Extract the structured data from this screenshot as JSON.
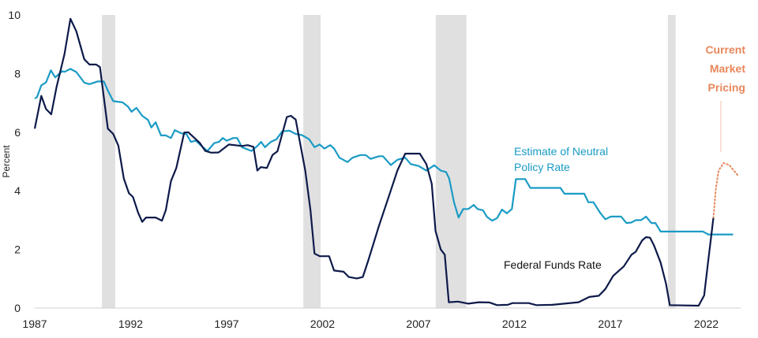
{
  "chart_data": {
    "type": "line",
    "ylabel": "Percent",
    "xlabel": "",
    "xlim": [
      1987,
      2023.8
    ],
    "ylim": [
      0,
      10
    ],
    "x_ticks": [
      "1987",
      "1992",
      "1997",
      "2002",
      "2007",
      "2012",
      "2017",
      "2022"
    ],
    "y_ticks": [
      "0",
      "2",
      "4",
      "6",
      "8",
      "10"
    ],
    "grid": false,
    "colors": {
      "fed_funds": "#0d1a4a",
      "neutral": "#1a9bc5",
      "market": "#e8875a",
      "recession": "#e0e0e0"
    },
    "recessions": [
      [
        1990.5,
        1991.2
      ],
      [
        2001.0,
        2001.9
      ],
      [
        2007.9,
        2009.5
      ],
      [
        2020.0,
        2020.4
      ]
    ],
    "series": [
      {
        "name": "Federal Funds Rate",
        "key": "fed_funds",
        "style": "solid",
        "points": [
          [
            1987.0,
            6.12
          ],
          [
            1987.34,
            7.24
          ],
          [
            1987.59,
            6.79
          ],
          [
            1987.86,
            6.61
          ],
          [
            1988.14,
            7.55
          ],
          [
            1988.55,
            8.67
          ],
          [
            1988.86,
            9.87
          ],
          [
            1989.17,
            9.44
          ],
          [
            1989.58,
            8.49
          ],
          [
            1989.85,
            8.31
          ],
          [
            1990.2,
            8.31
          ],
          [
            1990.4,
            8.22
          ],
          [
            1990.81,
            6.12
          ],
          [
            1991.09,
            5.94
          ],
          [
            1991.36,
            5.54
          ],
          [
            1991.64,
            4.42
          ],
          [
            1991.91,
            3.92
          ],
          [
            1992.12,
            3.79
          ],
          [
            1992.39,
            3.25
          ],
          [
            1992.6,
            2.94
          ],
          [
            1992.8,
            3.09
          ],
          [
            1993.3,
            3.09
          ],
          [
            1993.63,
            2.98
          ],
          [
            1993.83,
            3.34
          ],
          [
            1994.1,
            4.33
          ],
          [
            1994.38,
            4.78
          ],
          [
            1994.79,
            5.99
          ],
          [
            1995.0,
            6.0
          ],
          [
            1995.61,
            5.63
          ],
          [
            1995.89,
            5.36
          ],
          [
            1996.2,
            5.3
          ],
          [
            1996.58,
            5.31
          ],
          [
            1997.12,
            5.58
          ],
          [
            1997.8,
            5.53
          ],
          [
            1998.1,
            5.56
          ],
          [
            1998.4,
            5.5
          ],
          [
            1998.6,
            4.69
          ],
          [
            1998.78,
            4.81
          ],
          [
            1999.1,
            4.78
          ],
          [
            1999.39,
            5.22
          ],
          [
            1999.65,
            5.35
          ],
          [
            2000.14,
            6.52
          ],
          [
            2000.35,
            6.56
          ],
          [
            2000.6,
            6.43
          ],
          [
            2001.1,
            4.69
          ],
          [
            2001.37,
            3.34
          ],
          [
            2001.58,
            1.86
          ],
          [
            2001.85,
            1.77
          ],
          [
            2002.34,
            1.77
          ],
          [
            2002.6,
            1.28
          ],
          [
            2003.1,
            1.24
          ],
          [
            2003.37,
            1.06
          ],
          [
            2003.79,
            1.01
          ],
          [
            2004.1,
            1.06
          ],
          [
            2004.39,
            1.64
          ],
          [
            2004.94,
            2.8
          ],
          [
            2005.49,
            3.88
          ],
          [
            2005.9,
            4.69
          ],
          [
            2006.31,
            5.27
          ],
          [
            2007.07,
            5.27
          ],
          [
            2007.41,
            4.91
          ],
          [
            2007.69,
            4.24
          ],
          [
            2007.89,
            2.63
          ],
          [
            2008.16,
            2.0
          ],
          [
            2008.37,
            1.82
          ],
          [
            2008.58,
            0.2
          ],
          [
            2009.06,
            0.22
          ],
          [
            2009.6,
            0.15
          ],
          [
            2010.15,
            0.2
          ],
          [
            2010.7,
            0.19
          ],
          [
            2011.1,
            0.1
          ],
          [
            2011.65,
            0.11
          ],
          [
            2011.9,
            0.17
          ],
          [
            2012.74,
            0.17
          ],
          [
            2013.15,
            0.1
          ],
          [
            2013.97,
            0.11
          ],
          [
            2015.34,
            0.2
          ],
          [
            2015.9,
            0.38
          ],
          [
            2016.4,
            0.42
          ],
          [
            2016.74,
            0.65
          ],
          [
            2017.15,
            1.1
          ],
          [
            2017.7,
            1.42
          ],
          [
            2018.1,
            1.82
          ],
          [
            2018.32,
            1.92
          ],
          [
            2018.66,
            2.31
          ],
          [
            2018.86,
            2.42
          ],
          [
            2019.07,
            2.4
          ],
          [
            2019.28,
            2.13
          ],
          [
            2019.62,
            1.55
          ],
          [
            2019.9,
            0.83
          ],
          [
            2020.1,
            0.1
          ],
          [
            2021.6,
            0.08
          ],
          [
            2021.89,
            0.43
          ],
          [
            2022.09,
            1.55
          ],
          [
            2022.37,
            3.07
          ]
        ]
      },
      {
        "name": "Estimate of Neutral Policy Rate",
        "key": "neutral",
        "style": "solid",
        "points": [
          [
            1987.0,
            7.15
          ],
          [
            1987.12,
            7.2
          ],
          [
            1987.34,
            7.6
          ],
          [
            1987.59,
            7.7
          ],
          [
            1987.84,
            8.11
          ],
          [
            1988.07,
            7.87
          ],
          [
            1988.42,
            8.08
          ],
          [
            1988.55,
            8.06
          ],
          [
            1988.86,
            8.16
          ],
          [
            1989.17,
            8.05
          ],
          [
            1989.58,
            7.69
          ],
          [
            1989.85,
            7.64
          ],
          [
            1990.27,
            7.73
          ],
          [
            1990.6,
            7.73
          ],
          [
            1990.81,
            7.42
          ],
          [
            1991.09,
            7.06
          ],
          [
            1991.57,
            7.02
          ],
          [
            1991.85,
            6.88
          ],
          [
            1992.05,
            6.7
          ],
          [
            1992.3,
            6.83
          ],
          [
            1992.6,
            6.56
          ],
          [
            1992.9,
            6.42
          ],
          [
            1993.08,
            6.16
          ],
          [
            1993.3,
            6.34
          ],
          [
            1993.58,
            5.89
          ],
          [
            1993.83,
            5.89
          ],
          [
            1994.1,
            5.8
          ],
          [
            1994.3,
            6.07
          ],
          [
            1994.65,
            5.96
          ],
          [
            1994.9,
            5.94
          ],
          [
            1995.14,
            5.67
          ],
          [
            1995.4,
            5.71
          ],
          [
            1995.69,
            5.53
          ],
          [
            1996.0,
            5.36
          ],
          [
            1996.36,
            5.63
          ],
          [
            1996.6,
            5.67
          ],
          [
            1996.8,
            5.8
          ],
          [
            1997.0,
            5.71
          ],
          [
            1997.35,
            5.8
          ],
          [
            1997.55,
            5.8
          ],
          [
            1997.8,
            5.49
          ],
          [
            1998.3,
            5.36
          ],
          [
            1998.6,
            5.53
          ],
          [
            1998.8,
            5.67
          ],
          [
            1999.0,
            5.49
          ],
          [
            1999.3,
            5.67
          ],
          [
            1999.6,
            5.76
          ],
          [
            1999.9,
            6.03
          ],
          [
            2000.27,
            6.05
          ],
          [
            2000.6,
            5.94
          ],
          [
            2000.93,
            5.9
          ],
          [
            2001.3,
            5.76
          ],
          [
            2001.58,
            5.49
          ],
          [
            2001.85,
            5.58
          ],
          [
            2002.1,
            5.44
          ],
          [
            2002.4,
            5.56
          ],
          [
            2002.6,
            5.44
          ],
          [
            2002.88,
            5.13
          ],
          [
            2003.3,
            4.98
          ],
          [
            2003.56,
            5.13
          ],
          [
            2003.97,
            5.22
          ],
          [
            2004.25,
            5.22
          ],
          [
            2004.5,
            5.09
          ],
          [
            2004.94,
            5.18
          ],
          [
            2005.15,
            5.18
          ],
          [
            2005.56,
            4.88
          ],
          [
            2005.9,
            5.06
          ],
          [
            2006.31,
            5.13
          ],
          [
            2006.6,
            4.91
          ],
          [
            2007.0,
            4.85
          ],
          [
            2007.41,
            4.69
          ],
          [
            2007.82,
            4.87
          ],
          [
            2008.16,
            4.69
          ],
          [
            2008.44,
            4.64
          ],
          [
            2008.6,
            4.42
          ],
          [
            2008.85,
            3.61
          ],
          [
            2009.09,
            3.09
          ],
          [
            2009.33,
            3.38
          ],
          [
            2009.6,
            3.38
          ],
          [
            2009.88,
            3.52
          ],
          [
            2010.08,
            3.38
          ],
          [
            2010.36,
            3.34
          ],
          [
            2010.57,
            3.11
          ],
          [
            2010.84,
            2.98
          ],
          [
            2011.1,
            3.07
          ],
          [
            2011.35,
            3.36
          ],
          [
            2011.6,
            3.23
          ],
          [
            2011.87,
            3.38
          ],
          [
            2012.08,
            4.4
          ],
          [
            2012.56,
            4.4
          ],
          [
            2012.83,
            4.1
          ],
          [
            2014.4,
            4.1
          ],
          [
            2014.61,
            3.9
          ],
          [
            2015.64,
            3.9
          ],
          [
            2015.85,
            3.61
          ],
          [
            2016.12,
            3.61
          ],
          [
            2016.47,
            3.25
          ],
          [
            2016.74,
            3.03
          ],
          [
            2017.02,
            3.12
          ],
          [
            2017.56,
            3.12
          ],
          [
            2017.84,
            2.9
          ],
          [
            2018.1,
            2.92
          ],
          [
            2018.32,
            3.0
          ],
          [
            2018.6,
            3.0
          ],
          [
            2018.86,
            3.12
          ],
          [
            2019.14,
            2.9
          ],
          [
            2019.35,
            2.9
          ],
          [
            2019.62,
            2.61
          ],
          [
            2021.83,
            2.61
          ],
          [
            2022.1,
            2.51
          ],
          [
            2023.4,
            2.51
          ]
        ]
      },
      {
        "name": "Current Market Pricing",
        "key": "market",
        "style": "dotted",
        "points": [
          [
            2022.37,
            3.07
          ],
          [
            2022.5,
            4.06
          ],
          [
            2022.64,
            4.69
          ],
          [
            2022.9,
            4.95
          ],
          [
            2023.2,
            4.88
          ],
          [
            2023.66,
            4.52
          ]
        ]
      }
    ],
    "annotations": {
      "neutral_label": [
        "Estimate of Neutral",
        "Policy Rate"
      ],
      "fed_funds_label": "Federal Funds Rate",
      "market_label": [
        "Current",
        "Market",
        "Pricing"
      ]
    }
  }
}
